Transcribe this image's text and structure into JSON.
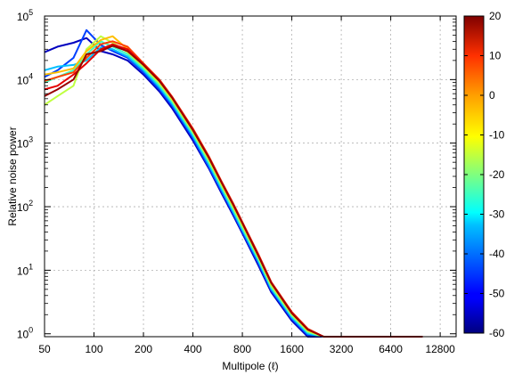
{
  "chart_data": {
    "type": "line",
    "title": "",
    "xlabel": "Multipole (ℓ)",
    "ylabel": "Relative noise power",
    "x_scale": "log2",
    "y_scale": "log10",
    "xlim": [
      50,
      16000
    ],
    "ylim": [
      0.9,
      100000
    ],
    "x_ticks": [
      50,
      100,
      200,
      400,
      800,
      1600,
      3200,
      6400,
      12800
    ],
    "x_tick_labels": [
      "50",
      "100",
      "200",
      "400",
      "800",
      "1600",
      "3200",
      "6400",
      "12800"
    ],
    "y_ticks": [
      1,
      10,
      100,
      1000,
      10000,
      100000
    ],
    "y_tick_labels": [
      {
        "base": "10",
        "exp": "0"
      },
      {
        "base": "10",
        "exp": "1"
      },
      {
        "base": "10",
        "exp": "2"
      },
      {
        "base": "10",
        "exp": "3"
      },
      {
        "base": "10",
        "exp": "4"
      },
      {
        "base": "10",
        "exp": "5"
      }
    ],
    "grid": true,
    "colorbar": {
      "colormap": "jet",
      "min": -60,
      "max": 20,
      "ticks": [
        20,
        10,
        0,
        -10,
        -20,
        -30,
        -40,
        -50,
        -60
      ],
      "tick_labels": [
        "20",
        "10",
        "0",
        "-10",
        "-20",
        "-30",
        "-40",
        "-50",
        "-60"
      ]
    },
    "series": [
      {
        "color_value": -55,
        "x": [
          50,
          60,
          75,
          90,
          110,
          130,
          160,
          200,
          250,
          300,
          400,
          500,
          600,
          700,
          800,
          1000,
          1200,
          1600,
          2000,
          2500,
          3200,
          4000,
          5000,
          6400,
          8000,
          10000
        ],
        "y": [
          27000,
          33000,
          38000,
          45000,
          28000,
          25000,
          20000,
          12000,
          6500,
          3500,
          1100,
          400,
          160,
          75,
          38,
          12,
          4.5,
          1.6,
          0.9,
          0.6,
          0.55,
          0.6,
          0.65,
          0.65,
          0.7,
          0.72
        ]
      },
      {
        "color_value": -45,
        "x": [
          50,
          60,
          75,
          90,
          110,
          130,
          160,
          200,
          250,
          300,
          400,
          500,
          600,
          700,
          800,
          1000,
          1200,
          1600,
          2000,
          2500,
          3200,
          4000,
          5000,
          6400,
          8000,
          10000
        ],
        "y": [
          11000,
          14000,
          22000,
          60000,
          35000,
          28000,
          22000,
          13000,
          7000,
          3800,
          1200,
          420,
          170,
          80,
          40,
          13,
          4.8,
          1.7,
          0.95,
          0.62,
          0.55,
          0.6,
          0.65,
          0.66,
          0.7,
          0.72
        ]
      },
      {
        "color_value": -35,
        "x": [
          50,
          60,
          75,
          90,
          110,
          130,
          160,
          200,
          250,
          300,
          400,
          500,
          600,
          700,
          800,
          1000,
          1200,
          1600,
          2000,
          2500,
          3200,
          4000,
          5000,
          6400,
          8000,
          10000
        ],
        "y": [
          14000,
          16000,
          17000,
          20000,
          32000,
          30000,
          23000,
          14000,
          7600,
          4100,
          1300,
          460,
          185,
          85,
          43,
          14,
          5.1,
          1.8,
          1.0,
          0.65,
          0.56,
          0.61,
          0.66,
          0.67,
          0.7,
          0.73
        ]
      },
      {
        "color_value": -25,
        "x": [
          50,
          60,
          75,
          90,
          110,
          130,
          160,
          200,
          250,
          300,
          400,
          500,
          600,
          700,
          800,
          1000,
          1200,
          1600,
          2000,
          2500,
          3200,
          4000,
          5000,
          6400,
          8000,
          10000
        ],
        "y": [
          9000,
          11000,
          14000,
          25000,
          40000,
          33000,
          25000,
          15000,
          8200,
          4400,
          1400,
          500,
          200,
          92,
          46,
          15,
          5.4,
          1.9,
          1.05,
          0.67,
          0.57,
          0.61,
          0.66,
          0.68,
          0.71,
          0.73
        ]
      },
      {
        "color_value": -15,
        "x": [
          50,
          60,
          75,
          90,
          110,
          130,
          160,
          200,
          250,
          300,
          400,
          500,
          600,
          700,
          800,
          1000,
          1200,
          1600,
          2000,
          2500,
          3200,
          4000,
          5000,
          6400,
          8000,
          10000
        ],
        "y": [
          4000,
          5500,
          8000,
          30000,
          48000,
          38000,
          27000,
          16000,
          8800,
          4700,
          1500,
          540,
          215,
          100,
          50,
          16,
          5.8,
          2.0,
          1.1,
          0.7,
          0.58,
          0.62,
          0.67,
          0.68,
          0.71,
          0.74
        ]
      },
      {
        "color_value": -5,
        "x": [
          50,
          60,
          75,
          90,
          110,
          130,
          160,
          200,
          250,
          300,
          400,
          500,
          600,
          700,
          800,
          1000,
          1200,
          1600,
          2000,
          2500,
          3200,
          4000,
          5000,
          6400,
          8000,
          10000
        ],
        "y": [
          12000,
          13000,
          15000,
          28000,
          42000,
          48000,
          30000,
          17000,
          9400,
          5000,
          1600,
          580,
          230,
          108,
          54,
          17,
          6.2,
          2.1,
          1.15,
          0.72,
          0.59,
          0.62,
          0.67,
          0.69,
          0.72,
          0.74
        ]
      },
      {
        "color_value": 5,
        "x": [
          50,
          60,
          75,
          90,
          110,
          130,
          160,
          200,
          250,
          300,
          400,
          500,
          600,
          700,
          800,
          1000,
          1200,
          1600,
          2000,
          2500,
          3200,
          4000,
          5000,
          6400,
          8000,
          10000
        ],
        "y": [
          9500,
          11000,
          13000,
          22000,
          36000,
          40000,
          33000,
          18000,
          10000,
          5300,
          1700,
          620,
          245,
          115,
          57,
          18,
          6.5,
          2.2,
          1.2,
          0.75,
          0.6,
          0.63,
          0.68,
          0.7,
          0.72,
          0.75
        ]
      },
      {
        "color_value": 12,
        "x": [
          50,
          60,
          75,
          90,
          110,
          130,
          160,
          200,
          250,
          300,
          400,
          500,
          600,
          700,
          800,
          1000,
          1200,
          1600,
          2000,
          2500,
          3200,
          4000,
          5000,
          6400,
          8000,
          10000
        ],
        "y": [
          7000,
          8000,
          12000,
          18000,
          30000,
          36000,
          30000,
          17500,
          9800,
          5200,
          1650,
          600,
          240,
          112,
          56,
          17.5,
          6.4,
          2.15,
          1.18,
          0.74,
          0.6,
          0.63,
          0.68,
          0.7,
          0.72,
          0.75
        ]
      },
      {
        "color_value": 18,
        "x": [
          50,
          60,
          75,
          90,
          110,
          130,
          160,
          200,
          250,
          300,
          400,
          500,
          600,
          700,
          800,
          1000,
          1200,
          1600,
          2000,
          2500,
          3200,
          4000,
          5000,
          6400,
          8000,
          10000
        ],
        "y": [
          5500,
          7000,
          10000,
          25000,
          28000,
          34000,
          28000,
          17000,
          9500,
          5100,
          1600,
          590,
          235,
          110,
          55,
          17,
          6.3,
          2.1,
          1.16,
          0.73,
          0.6,
          0.63,
          0.68,
          0.7,
          0.72,
          0.75
        ]
      }
    ]
  }
}
